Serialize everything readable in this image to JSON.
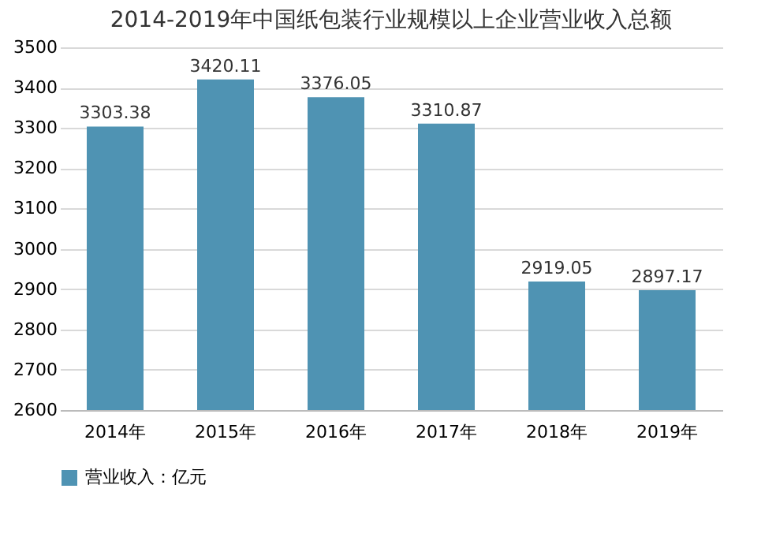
{
  "chart_data": {
    "type": "bar",
    "title": "2014-2019年中国纸包装行业规模以上企业营业收入总额",
    "categories": [
      "2014年",
      "2015年",
      "2016年",
      "2017年",
      "2018年",
      "2019年"
    ],
    "series": [
      {
        "name": "营业收入：亿元",
        "color": "#4f93b3",
        "values": [
          3303.38,
          3420.11,
          3376.05,
          3310.87,
          2919.05,
          2897.17
        ]
      }
    ],
    "ylim": [
      2600,
      3500
    ],
    "yticks": [
      2600,
      2700,
      2800,
      2900,
      3000,
      3100,
      3200,
      3300,
      3400,
      3500
    ],
    "grid": "y",
    "legend": "bottom",
    "data_labels": true
  }
}
